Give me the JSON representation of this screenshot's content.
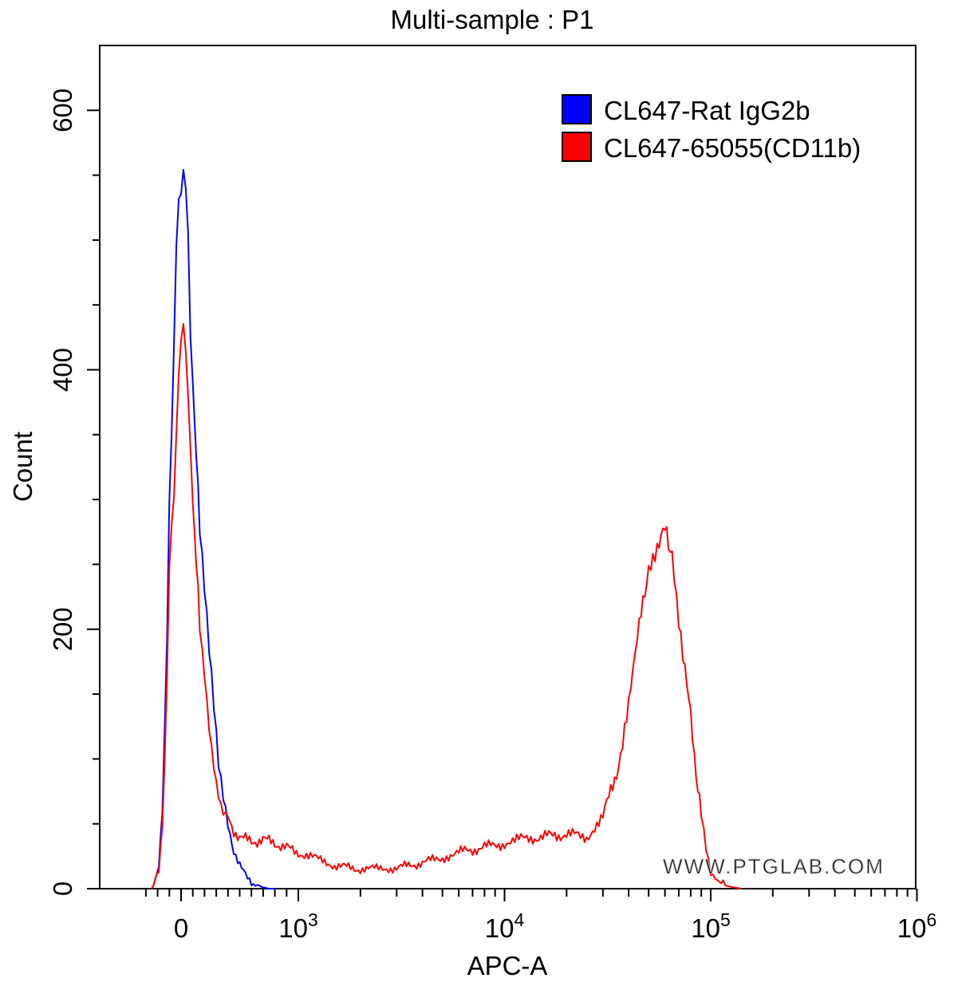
{
  "chart_data": {
    "type": "line",
    "title": "Multi-sample : P1",
    "xlabel": "APC-A",
    "ylabel": "Count",
    "x_scale": "biexponential",
    "xlim": [
      -300,
      1000000
    ],
    "ylim": [
      0,
      650
    ],
    "y_ticks": [
      0,
      200,
      400,
      600
    ],
    "y_tick_labels": [
      "0",
      "200",
      "400",
      "600"
    ],
    "x_tick_labels": [
      {
        "base": "0",
        "exp": ""
      },
      {
        "base": "10",
        "exp": "3"
      },
      {
        "base": "10",
        "exp": "4"
      },
      {
        "base": "10",
        "exp": "5"
      },
      {
        "base": "10",
        "exp": "6"
      }
    ],
    "x_ticks": [
      0,
      1000,
      10000,
      100000,
      1000000
    ],
    "grid": false,
    "legend_position": "top-right",
    "watermark": "WWW.PTGLAB.COM",
    "series": [
      {
        "name": "CL647-Rat IgG2b",
        "color": "#0000ff",
        "x": [
          -250,
          -220,
          -190,
          -160,
          -140,
          -120,
          -100,
          -80,
          -60,
          -40,
          -20,
          0,
          20,
          40,
          60,
          80,
          100,
          130,
          160,
          200,
          240,
          280,
          320,
          360,
          400,
          450,
          500,
          550,
          600,
          650,
          700,
          750,
          800
        ],
        "y": [
          0,
          5,
          20,
          60,
          120,
          200,
          300,
          360,
          420,
          500,
          525,
          535,
          545,
          540,
          500,
          430,
          390,
          330,
          280,
          230,
          180,
          140,
          100,
          75,
          50,
          30,
          18,
          10,
          5,
          3,
          1,
          0,
          0
        ]
      },
      {
        "name": "CL647-65055(CD11b)",
        "color": "#ff0000",
        "x": [
          -250,
          -220,
          -190,
          -160,
          -140,
          -120,
          -100,
          -80,
          -60,
          -40,
          -20,
          0,
          20,
          40,
          60,
          80,
          100,
          130,
          160,
          200,
          240,
          280,
          320,
          360,
          400,
          450,
          500,
          600,
          700,
          800,
          1000,
          1500,
          2000,
          3000,
          4000,
          5000,
          6000,
          8000,
          10000,
          12000,
          15000,
          20000,
          25000,
          30000,
          35000,
          40000,
          45000,
          50000,
          55000,
          60000,
          65000,
          70000,
          75000,
          80000,
          85000,
          90000,
          95000,
          100000,
          110000,
          120000,
          140000
        ],
        "y": [
          0,
          5,
          15,
          50,
          100,
          170,
          250,
          285,
          300,
          350,
          390,
          420,
          430,
          415,
          380,
          345,
          300,
          250,
          200,
          160,
          120,
          95,
          75,
          60,
          55,
          45,
          40,
          36,
          38,
          35,
          28,
          18,
          15,
          16,
          20,
          24,
          28,
          32,
          35,
          38,
          40,
          42,
          40,
          55,
          90,
          140,
          200,
          250,
          265,
          275,
          260,
          210,
          170,
          130,
          90,
          55,
          30,
          12,
          5,
          2,
          0
        ]
      }
    ]
  }
}
